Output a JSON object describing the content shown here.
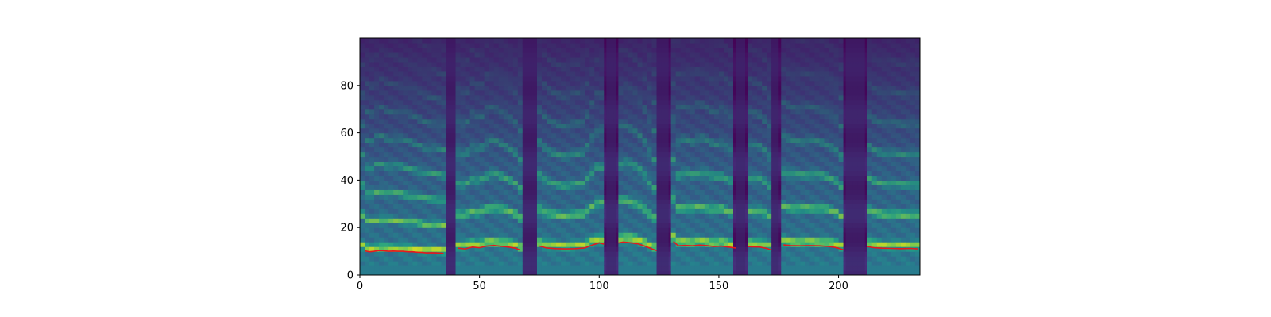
{
  "chart_data": {
    "type": "heatmap",
    "title": "",
    "xlabel": "",
    "ylabel": "",
    "xlim": [
      0,
      234
    ],
    "ylim": [
      0,
      100
    ],
    "xticks": [
      0,
      50,
      100,
      150,
      200
    ],
    "yticks": [
      0,
      20,
      40,
      60,
      80
    ],
    "colormap": "viridis",
    "grid": false,
    "legend": "none",
    "colors": {
      "pitch_line": "#e8191c",
      "heatmap_low": "#440154",
      "heatmap_high": "#fde725",
      "axis": "#000000"
    },
    "silence_frames": [
      [
        36,
        40
      ],
      [
        68,
        74
      ],
      [
        103,
        107
      ],
      [
        124,
        129
      ],
      [
        157,
        161
      ],
      [
        172,
        175
      ],
      [
        203,
        211
      ]
    ],
    "pitch_contour": [
      {
        "x": [
          2,
          4,
          6,
          8,
          10,
          12,
          14,
          16,
          18,
          20,
          22,
          24,
          26,
          28,
          30,
          32,
          35
        ],
        "y": [
          10.2,
          9.8,
          10.0,
          10.3,
          10.2,
          10.0,
          10.1,
          10.0,
          10.0,
          9.8,
          9.8,
          9.6,
          9.5,
          9.3,
          9.4,
          9.3,
          9.2
        ]
      },
      {
        "x": [
          41,
          44,
          47,
          50,
          53,
          56,
          59,
          62,
          65,
          67
        ],
        "y": [
          11.3,
          11.0,
          11.8,
          11.5,
          12.2,
          12.5,
          12.1,
          11.8,
          11.3,
          10.5
        ]
      },
      {
        "x": [
          75,
          78,
          82,
          86,
          90,
          94,
          97,
          100,
          102
        ],
        "y": [
          12.2,
          11.4,
          11.1,
          11.0,
          11.1,
          11.4,
          12.6,
          13.6,
          13.0
        ]
      },
      {
        "x": [
          108,
          110,
          113,
          116,
          119,
          122,
          124
        ],
        "y": [
          13.5,
          13.9,
          13.6,
          13.2,
          12.2,
          11.0,
          10.3
        ]
      },
      {
        "x": [
          131,
          133,
          136,
          139,
          142,
          145,
          148,
          151,
          154,
          157
        ],
        "y": [
          14.2,
          12.3,
          12.5,
          12.3,
          12.6,
          12.4,
          12.0,
          12.2,
          11.8,
          11.4
        ]
      },
      {
        "x": [
          162,
          164,
          167,
          170,
          172
        ],
        "y": [
          12.0,
          11.9,
          11.8,
          11.2,
          10.5
        ]
      },
      {
        "x": [
          177,
          180,
          184,
          188,
          192,
          196,
          199,
          202
        ],
        "y": [
          12.7,
          12.4,
          12.3,
          12.4,
          12.3,
          12.0,
          11.6,
          10.6
        ]
      },
      {
        "x": [
          212,
          215,
          218,
          222,
          226,
          230,
          233
        ],
        "y": [
          12.0,
          11.5,
          11.3,
          11.2,
          11.1,
          11.2,
          11.0
        ]
      }
    ]
  }
}
